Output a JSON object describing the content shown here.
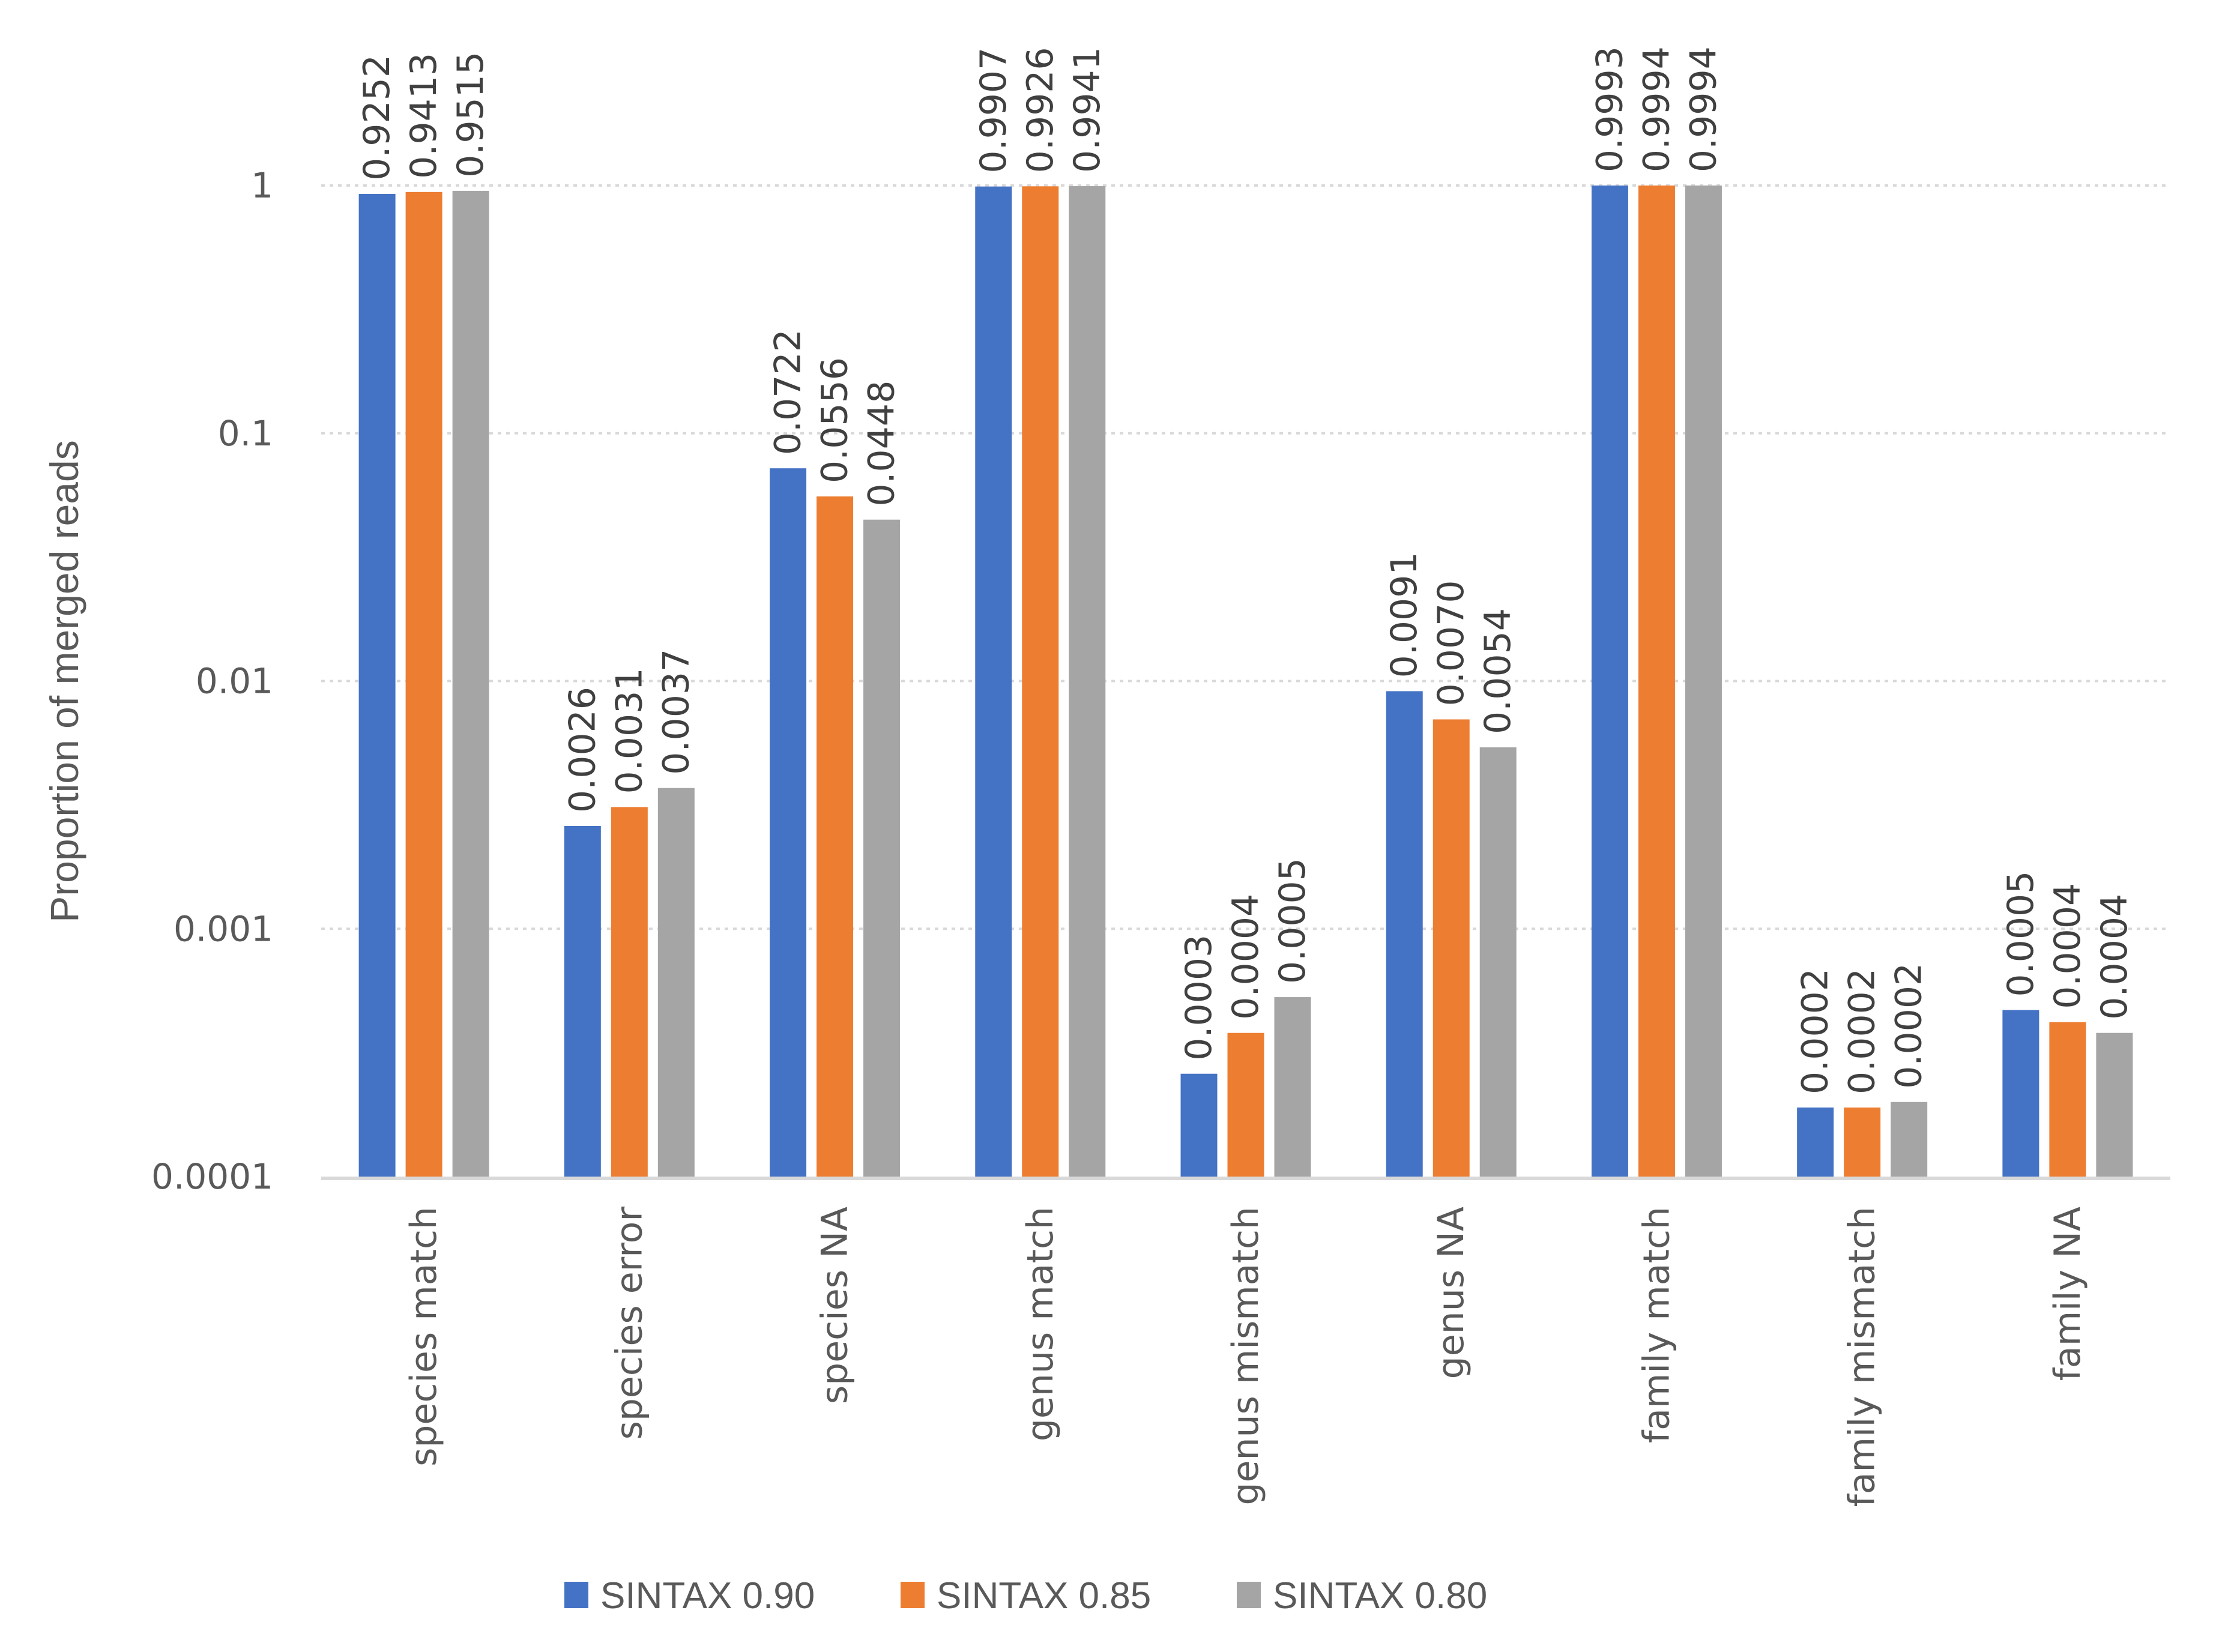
{
  "chart_data": {
    "type": "bar",
    "title": "",
    "xlabel": "",
    "ylabel": "Proportion of merged reads",
    "yscale": "log",
    "ylim": [
      0.0001,
      1
    ],
    "yticks": [
      1,
      0.1,
      0.01,
      0.001,
      0.0001
    ],
    "ytick_labels": [
      "1",
      "0.1",
      "0.01",
      "0.001",
      "0.0001"
    ],
    "grid": true,
    "legend_position": "bottom",
    "categories": [
      "species match",
      "species error",
      "species NA",
      "genus match",
      "genus mismatch",
      "genus NA",
      "family match",
      "family mismatch",
      "family NA"
    ],
    "series": [
      {
        "name": "SINTAX 0.90",
        "color": "#4472C4",
        "values": [
          0.9252,
          0.0026,
          0.0722,
          0.9907,
          0.00026,
          0.0091,
          0.9993,
          0.00019,
          0.00047
        ],
        "labels": [
          "0.9252",
          "0.0026",
          "0.0722",
          "0.9907",
          "0.0003",
          "0.0091",
          "0.9993",
          "0.0002",
          "0.0005"
        ]
      },
      {
        "name": "SINTAX 0.85",
        "color": "#ED7D31",
        "values": [
          0.9413,
          0.0031,
          0.0556,
          0.9926,
          0.00038,
          0.007,
          0.9994,
          0.00019,
          0.00042
        ],
        "labels": [
          "0.9413",
          "0.0031",
          "0.0556",
          "0.9926",
          "0.0004",
          "0.0070",
          "0.9994",
          "0.0002",
          "0.0004"
        ]
      },
      {
        "name": "SINTAX 0.80",
        "color": "#A5A5A5",
        "values": [
          0.9515,
          0.0037,
          0.0448,
          0.9941,
          0.00053,
          0.0054,
          0.9994,
          0.0002,
          0.00038
        ],
        "labels": [
          "0.9515",
          "0.0037",
          "0.0448",
          "0.9941",
          "0.0005",
          "0.0054",
          "0.9994",
          "0.0002",
          "0.0004"
        ]
      }
    ]
  }
}
